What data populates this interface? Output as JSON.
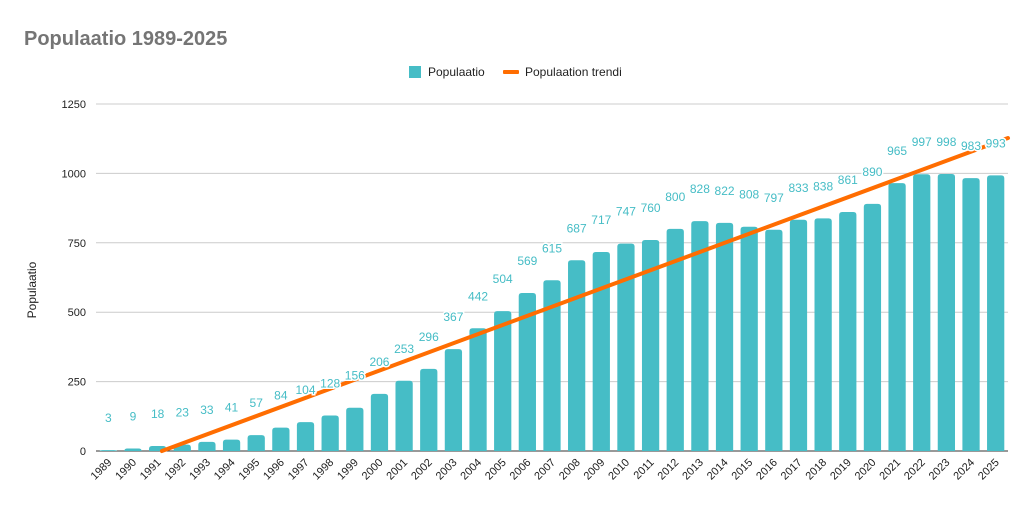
{
  "chart_data": {
    "type": "bar",
    "title": "Populaatio 1989-2025",
    "xlabel": "",
    "ylabel": "Populaatio",
    "ylim": [
      0,
      1250
    ],
    "yticks": [
      0,
      250,
      500,
      750,
      1000,
      1250
    ],
    "grid": true,
    "legend_position": "top",
    "categories": [
      "1989",
      "1990",
      "1991",
      "1992",
      "1993",
      "1994",
      "1995",
      "1996",
      "1997",
      "1998",
      "1999",
      "2000",
      "2001",
      "2002",
      "2003",
      "2004",
      "2005",
      "2006",
      "2007",
      "2008",
      "2009",
      "2010",
      "2011",
      "2012",
      "2013",
      "2014",
      "2015",
      "2016",
      "2017",
      "2018",
      "2019",
      "2020",
      "2021",
      "2022",
      "2023",
      "2024",
      "2025"
    ],
    "series": [
      {
        "name": "Populaatio",
        "type": "bar",
        "color": "#46bdc6",
        "values": [
          3,
          9,
          18,
          23,
          33,
          41,
          57,
          84,
          104,
          128,
          156,
          206,
          253,
          296,
          367,
          442,
          504,
          569,
          615,
          687,
          717,
          747,
          760,
          800,
          828,
          822,
          808,
          797,
          833,
          838,
          861,
          890,
          965,
          997,
          998,
          983,
          993
        ]
      },
      {
        "name": "Populaation trendi",
        "type": "linear-trendline",
        "color": "#ff6d01"
      }
    ]
  }
}
